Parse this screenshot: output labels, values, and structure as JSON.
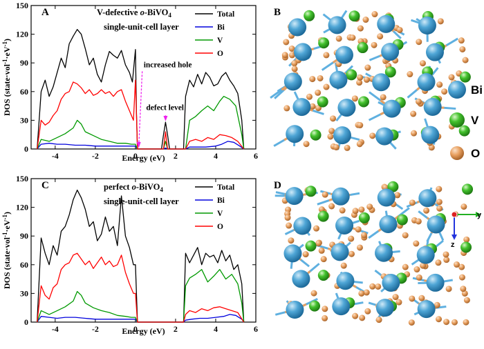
{
  "chart_data": [
    {
      "type": "line",
      "panel_label": "A",
      "title_line1_prefix": "V-defective ",
      "title_line1_italic": "o",
      "title_line1_formula": "-BiVO",
      "title_line1_subscript": "4",
      "title_line2": "single-unit-cell layer",
      "xlabel": "Energy (eV)",
      "ylabel_main": "DOS (state·vol",
      "ylabel_sup1": "-1",
      "ylabel_mid": "·eV",
      "ylabel_sup2": "-1",
      "ylabel_end": ")",
      "xlim": [
        -5.2,
        6
      ],
      "ylim": [
        0,
        150
      ],
      "xticks": [
        -4,
        -2,
        0,
        2,
        4,
        6
      ],
      "xtick_labels": [
        "-4",
        "-2",
        "0",
        "2",
        "4",
        "6"
      ],
      "yticks": [
        0,
        30,
        60,
        90,
        120,
        150
      ],
      "ytick_labels": [
        "0",
        "30",
        "60",
        "90",
        "120",
        "150"
      ],
      "legend": [
        "Total",
        "Bi",
        "V",
        "O"
      ],
      "annotations": [
        {
          "text": "increased hole",
          "x": 0.2,
          "y": 87
        },
        {
          "text": "defect level",
          "x": 1.5,
          "y": 38
        }
      ],
      "series": [
        {
          "name": "Total",
          "color": "#000000",
          "x": [
            -4.9,
            -4.7,
            -4.5,
            -4.3,
            -4.1,
            -3.9,
            -3.7,
            -3.5,
            -3.3,
            -3.1,
            -2.9,
            -2.7,
            -2.5,
            -2.3,
            -2.1,
            -1.9,
            -1.7,
            -1.5,
            -1.3,
            -1.1,
            -0.9,
            -0.7,
            -0.5,
            -0.3,
            -0.15,
            0.0,
            0.05,
            0.1,
            1.3,
            1.4,
            1.5,
            1.6,
            1.7,
            2.4,
            2.5,
            2.7,
            2.9,
            3.1,
            3.3,
            3.5,
            3.7,
            3.9,
            4.1,
            4.3,
            4.5,
            4.7,
            4.9,
            5.1,
            5.3,
            5.4
          ],
          "y": [
            0,
            60,
            72,
            55,
            65,
            80,
            95,
            85,
            110,
            118,
            125,
            120,
            105,
            88,
            95,
            78,
            70,
            88,
            102,
            98,
            95,
            103,
            88,
            80,
            70,
            104,
            40,
            0,
            0,
            15,
            28,
            15,
            0,
            0,
            55,
            72,
            65,
            78,
            68,
            80,
            75,
            66,
            68,
            76,
            80,
            72,
            66,
            58,
            30,
            0
          ]
        },
        {
          "name": "Bi",
          "color": "#0000dd",
          "x": [
            -4.9,
            -4.7,
            -4.3,
            -3.9,
            -3.5,
            -3.0,
            -2.5,
            -2.0,
            -1.5,
            -1.0,
            -0.5,
            0.0,
            0.1,
            1.4,
            1.5,
            1.6,
            2.5,
            2.7,
            3.0,
            3.5,
            4.0,
            4.3,
            4.6,
            4.9,
            5.2,
            5.4
          ],
          "y": [
            0,
            5,
            6,
            5,
            5,
            4,
            4,
            3,
            3,
            3,
            3,
            3,
            0,
            0,
            1,
            0,
            0,
            2,
            2,
            2,
            3,
            5,
            8,
            7,
            3,
            0
          ]
        },
        {
          "name": "V",
          "color": "#009900",
          "x": [
            -4.9,
            -4.7,
            -4.3,
            -3.9,
            -3.5,
            -3.1,
            -2.9,
            -2.7,
            -2.5,
            -2.1,
            -1.7,
            -1.3,
            -0.9,
            -0.5,
            -0.2,
            0.0,
            0.1,
            1.4,
            1.5,
            1.6,
            2.5,
            2.7,
            3.0,
            3.3,
            3.6,
            3.9,
            4.2,
            4.4,
            4.7,
            5.0,
            5.3,
            5.4
          ],
          "y": [
            0,
            10,
            8,
            12,
            16,
            22,
            30,
            26,
            18,
            14,
            10,
            8,
            6,
            6,
            5,
            5,
            0,
            0,
            8,
            0,
            0,
            30,
            34,
            40,
            45,
            40,
            50,
            55,
            52,
            45,
            15,
            0
          ]
        },
        {
          "name": "O",
          "color": "#ff0000",
          "x": [
            -4.9,
            -4.7,
            -4.5,
            -4.3,
            -4.1,
            -3.9,
            -3.7,
            -3.5,
            -3.3,
            -3.1,
            -2.9,
            -2.7,
            -2.5,
            -2.3,
            -2.1,
            -1.9,
            -1.7,
            -1.5,
            -1.3,
            -1.1,
            -0.9,
            -0.7,
            -0.5,
            -0.3,
            -0.1,
            0.0,
            0.1,
            1.4,
            1.5,
            1.6,
            2.5,
            2.7,
            3.0,
            3.3,
            3.6,
            3.9,
            4.2,
            4.5,
            4.8,
            5.1,
            5.4
          ],
          "y": [
            0,
            30,
            25,
            28,
            35,
            40,
            52,
            58,
            60,
            70,
            68,
            64,
            58,
            62,
            56,
            58,
            62,
            58,
            60,
            55,
            60,
            62,
            50,
            40,
            30,
            72,
            0,
            0,
            18,
            0,
            0,
            8,
            10,
            8,
            12,
            10,
            15,
            14,
            12,
            8,
            0
          ]
        }
      ]
    },
    {
      "type": "line",
      "panel_label": "C",
      "title_line1_prefix": "perfect ",
      "title_line1_italic": "o",
      "title_line1_formula": "-BiVO",
      "title_line1_subscript": "4",
      "title_line2": "single-unit-cell layer",
      "xlabel": "Energy (eV)",
      "ylabel_main": "DOS (state·vol",
      "ylabel_sup1": "-1",
      "ylabel_mid": "·eV",
      "ylabel_sup2": "-1",
      "ylabel_end": ")",
      "xlim": [
        -5.2,
        6
      ],
      "ylim": [
        0,
        150
      ],
      "xticks": [
        -4,
        -2,
        0,
        2,
        4,
        6
      ],
      "xtick_labels": [
        "-4",
        "-2",
        "0",
        "2",
        "4",
        "6"
      ],
      "yticks": [
        0,
        30,
        60,
        90,
        120,
        150
      ],
      "ytick_labels": [
        "0",
        "30",
        "60",
        "90",
        "120",
        "150"
      ],
      "legend": [
        "Total",
        "Bi",
        "V",
        "O"
      ],
      "annotations": [],
      "series": [
        {
          "name": "Total",
          "color": "#000000",
          "x": [
            -4.9,
            -4.7,
            -4.5,
            -4.3,
            -4.1,
            -3.9,
            -3.7,
            -3.5,
            -3.3,
            -3.1,
            -2.9,
            -2.7,
            -2.5,
            -2.3,
            -2.1,
            -1.9,
            -1.7,
            -1.5,
            -1.3,
            -1.1,
            -0.9,
            -0.7,
            -0.5,
            -0.3,
            -0.1,
            0.0,
            0.1,
            2.4,
            2.5,
            2.7,
            2.9,
            3.1,
            3.3,
            3.5,
            3.7,
            3.9,
            4.1,
            4.3,
            4.5,
            4.7,
            4.9,
            5.1,
            5.3,
            5.4
          ],
          "y": [
            0,
            88,
            72,
            60,
            80,
            70,
            95,
            100,
            112,
            128,
            138,
            130,
            118,
            100,
            105,
            85,
            92,
            110,
            95,
            100,
            80,
            132,
            90,
            78,
            60,
            60,
            0,
            0,
            72,
            62,
            70,
            78,
            60,
            72,
            68,
            70,
            62,
            75,
            64,
            70,
            55,
            60,
            40,
            0
          ]
        },
        {
          "name": "Bi",
          "color": "#0000dd",
          "x": [
            -4.9,
            -4.7,
            -4.3,
            -3.9,
            -3.5,
            -3.0,
            -2.5,
            -2.0,
            -1.5,
            -1.0,
            -0.5,
            0.0,
            0.1,
            2.4,
            2.5,
            2.8,
            3.2,
            3.6,
            4.0,
            4.4,
            4.7,
            5.0,
            5.3,
            5.4
          ],
          "y": [
            0,
            6,
            5,
            4,
            5,
            5,
            4,
            3,
            3,
            3,
            3,
            3,
            0,
            0,
            2,
            3,
            4,
            4,
            5,
            6,
            8,
            7,
            3,
            0
          ]
        },
        {
          "name": "V",
          "color": "#009900",
          "x": [
            -4.9,
            -4.7,
            -4.3,
            -3.9,
            -3.5,
            -3.1,
            -2.9,
            -2.7,
            -2.5,
            -2.1,
            -1.7,
            -1.3,
            -0.9,
            -0.5,
            -0.2,
            0.0,
            0.1,
            2.4,
            2.5,
            2.7,
            3.0,
            3.3,
            3.6,
            3.9,
            4.2,
            4.5,
            4.8,
            5.1,
            5.3,
            5.4
          ],
          "y": [
            0,
            12,
            8,
            12,
            16,
            22,
            32,
            28,
            20,
            15,
            12,
            10,
            7,
            6,
            5,
            5,
            0,
            0,
            38,
            46,
            50,
            55,
            42,
            48,
            55,
            45,
            50,
            40,
            20,
            0
          ]
        },
        {
          "name": "O",
          "color": "#ff0000",
          "x": [
            -4.9,
            -4.7,
            -4.5,
            -4.3,
            -4.1,
            -3.9,
            -3.7,
            -3.5,
            -3.3,
            -3.1,
            -2.9,
            -2.7,
            -2.5,
            -2.3,
            -2.1,
            -1.9,
            -1.7,
            -1.5,
            -1.3,
            -1.1,
            -0.9,
            -0.7,
            -0.5,
            -0.3,
            -0.1,
            0.0,
            0.1,
            2.4,
            2.5,
            2.7,
            3.0,
            3.3,
            3.6,
            3.9,
            4.2,
            4.5,
            4.8,
            5.1,
            5.4
          ],
          "y": [
            0,
            38,
            28,
            24,
            36,
            40,
            55,
            60,
            62,
            70,
            72,
            66,
            60,
            64,
            56,
            62,
            68,
            60,
            64,
            58,
            60,
            70,
            52,
            40,
            30,
            30,
            0,
            0,
            8,
            12,
            10,
            14,
            12,
            15,
            16,
            14,
            12,
            10,
            0
          ]
        }
      ]
    }
  ],
  "structures": [
    {
      "panel_label": "B"
    },
    {
      "panel_label": "D"
    }
  ],
  "legend_atoms": [
    {
      "label": "Bi",
      "color": "#4fa6d6"
    },
    {
      "label": "V",
      "color": "#44c22e"
    },
    {
      "label": "O",
      "color": "#e8a060"
    }
  ],
  "axis_indicator": {
    "y_label": "y",
    "z_label": "z"
  }
}
